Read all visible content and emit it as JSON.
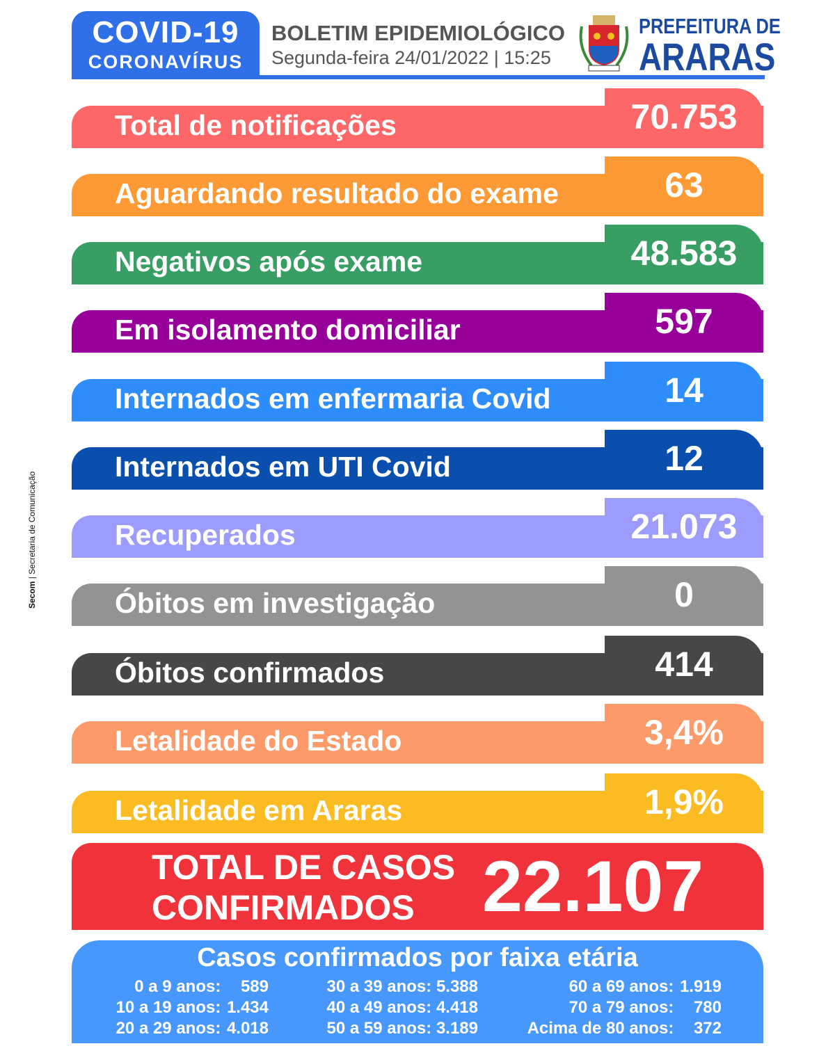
{
  "header": {
    "badge_title": "COVID-19",
    "badge_subtitle": "CORONAVÍRUS",
    "title": "BOLETIM EPIDEMIOLÓGICO",
    "date": "Segunda-feira 24/01/2022 | 15:25",
    "org_line1": "PREFEITURA DE",
    "org_line2": "ARARAS",
    "crest_icon": "city-coat-of-arms",
    "accent": "#2f6fe8"
  },
  "side_credit": {
    "org": "Secom",
    "separator": "|",
    "department": "Secretaria de Comunicação"
  },
  "stats": [
    {
      "label": "Total de notificações",
      "value": "70.753",
      "color": "#fd6767"
    },
    {
      "label": "Aguardando resultado do exame",
      "value": "63",
      "color": "#fd9a36"
    },
    {
      "label": "Negativos após exame",
      "value": "48.583",
      "color": "#389e63"
    },
    {
      "label": "Em isolamento domiciliar",
      "value": "597",
      "color": "#98009a"
    },
    {
      "label": "Internados em enfermaria Covid",
      "value": "14",
      "color": "#2f8cfb"
    },
    {
      "label": "Internados em UTI Covid",
      "value": "12",
      "color": "#0a4fad"
    },
    {
      "label": "Recuperados",
      "value": "21.073",
      "color": "#9b9cfb"
    },
    {
      "label": "Óbitos em investigação",
      "value": "0",
      "color": "#939393"
    },
    {
      "label": "Óbitos confirmados",
      "value": "414",
      "color": "#474747"
    },
    {
      "label": "Letalidade do Estado",
      "value": "3,4%",
      "color": "#fd9a6a"
    },
    {
      "label": "Letalidade em Araras",
      "value": "1,9%",
      "color": "#fbbb22"
    }
  ],
  "total": {
    "label_line1": "TOTAL DE CASOS",
    "label_line2": "CONFIRMADOS",
    "value": "22.107",
    "color": "#f0333b"
  },
  "age_groups": {
    "title": "Casos confirmados por faixa etária",
    "columns": [
      [
        {
          "range": "0 a 9 anos:",
          "value": "589"
        },
        {
          "range": "10 a 19 anos:",
          "value": "1.434"
        },
        {
          "range": "20 a 29 anos:",
          "value": "4.018"
        }
      ],
      [
        {
          "range": "30 a 39 anos:",
          "value": "5.388"
        },
        {
          "range": "40 a 49 anos:",
          "value": "4.418"
        },
        {
          "range": "50 a 59 anos:",
          "value": "3.189"
        }
      ],
      [
        {
          "range": "60 a 69 anos:",
          "value": "1.919"
        },
        {
          "range": "70 a 79 anos:",
          "value": "780"
        },
        {
          "range": "Acima de 80 anos:",
          "value": "372"
        }
      ]
    ]
  }
}
